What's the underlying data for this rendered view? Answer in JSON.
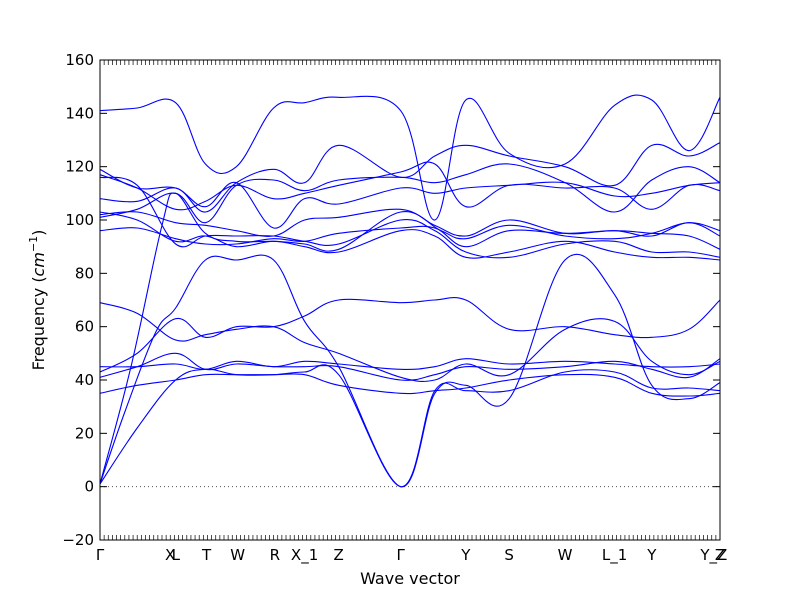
{
  "chart_data": {
    "type": "line",
    "title": "",
    "xlabel": "Wave vector",
    "ylabel": "Frequency (",
    "ylabel_unit": "cm",
    "ylabel_unit_exp": "−1",
    "ylabel_close": ")",
    "ylim": [
      -20,
      160
    ],
    "yticks": [
      -20,
      0,
      20,
      40,
      60,
      80,
      100,
      120,
      140,
      160
    ],
    "ytick_labels": [
      "−20",
      "0",
      "20",
      "40",
      "60",
      "80",
      "100",
      "120",
      "140",
      "160"
    ],
    "xlim": [
      0,
      1
    ],
    "xticks": [
      {
        "label": "Γ",
        "x": 0.0
      },
      {
        "label": "X",
        "x": 0.115
      },
      {
        "label": "L",
        "x": 0.122
      },
      {
        "label": "T",
        "x": 0.172
      },
      {
        "label": "W",
        "x": 0.222
      },
      {
        "label": "R",
        "x": 0.282
      },
      {
        "label": "X_1",
        "x": 0.33
      },
      {
        "label": "Z",
        "x": 0.385
      },
      {
        "label": "Γ",
        "x": 0.485
      },
      {
        "label": "Y",
        "x": 0.59
      },
      {
        "label": "S",
        "x": 0.66
      },
      {
        "label": "W",
        "x": 0.75
      },
      {
        "label": "L_1",
        "x": 0.83
      },
      {
        "label": "Y",
        "x": 0.89
      },
      {
        "label": "Y_Z",
        "x": 0.99
      },
      {
        "label": "Z",
        "x": 1.0
      }
    ],
    "zero_line": {
      "y": 0,
      "style": "dotted"
    },
    "line_color": "#0000ff",
    "series": [
      {
        "x": [
          0,
          0.05,
          0.1,
          0.122,
          0.17,
          0.22,
          0.28,
          0.33,
          0.385,
          0.485,
          0.55,
          0.59,
          0.66,
          0.75,
          0.83,
          0.89,
          0.95,
          1.0
        ],
        "y": [
          1,
          45,
          98,
          110,
          95,
          92,
          92,
          91,
          89,
          103,
          96,
          93,
          98,
          94,
          93,
          95,
          99,
          96
        ]
      },
      {
        "x": [
          0,
          0.04,
          0.09,
          0.122,
          0.17,
          0.22,
          0.28,
          0.33,
          0.385,
          0.485,
          0.54,
          0.59,
          0.66,
          0.75,
          0.83,
          0.89,
          0.95,
          1.0
        ],
        "y": [
          1,
          28,
          58,
          67,
          85,
          85,
          85,
          62,
          45,
          0,
          35,
          38,
          33,
          85,
          72,
          38,
          33,
          39
        ]
      },
      {
        "x": [
          0,
          0.06,
          0.122,
          0.17,
          0.22,
          0.28,
          0.33,
          0.385,
          0.485,
          0.54,
          0.59,
          0.66,
          0.75,
          0.83,
          0.89,
          0.95,
          1.0
        ],
        "y": [
          1,
          22,
          40,
          44,
          42,
          42,
          43,
          42,
          0,
          36,
          36,
          36,
          43,
          43,
          37,
          37,
          36
        ]
      },
      {
        "x": [
          0,
          0.06,
          0.122,
          0.17,
          0.22,
          0.28,
          0.33,
          0.385,
          0.485,
          0.54,
          0.59,
          0.66,
          0.75,
          0.83,
          0.89,
          0.95,
          1.0
        ],
        "y": [
          35,
          38,
          40,
          42,
          42,
          42,
          42,
          38,
          35,
          36,
          37,
          40,
          42,
          41,
          35,
          34,
          35
        ]
      },
      {
        "x": [
          0,
          0.06,
          0.122,
          0.17,
          0.22,
          0.28,
          0.33,
          0.385,
          0.485,
          0.54,
          0.59,
          0.66,
          0.75,
          0.83,
          0.89,
          0.95,
          1.0
        ],
        "y": [
          45,
          45,
          46,
          44,
          47,
          45,
          47,
          46,
          44,
          45,
          48,
          46,
          47,
          46,
          45,
          45,
          46
        ]
      },
      {
        "x": [
          0,
          0.06,
          0.122,
          0.17,
          0.22,
          0.28,
          0.33,
          0.385,
          0.485,
          0.54,
          0.59,
          0.66,
          0.75,
          0.83,
          0.89,
          0.95,
          1.0
        ],
        "y": [
          41,
          45,
          50,
          44,
          46,
          45,
          45,
          45,
          40,
          42,
          45,
          44,
          45,
          47,
          44,
          41,
          48
        ]
      },
      {
        "x": [
          0,
          0.06,
          0.122,
          0.17,
          0.22,
          0.28,
          0.33,
          0.385,
          0.485,
          0.54,
          0.59,
          0.66,
          0.75,
          0.83,
          0.89,
          0.95,
          1.0
        ],
        "y": [
          69,
          65,
          55,
          57,
          59,
          60,
          54,
          50,
          41,
          40,
          46,
          42,
          59,
          62,
          47,
          42,
          47
        ]
      },
      {
        "x": [
          0,
          0.06,
          0.122,
          0.17,
          0.22,
          0.28,
          0.33,
          0.385,
          0.485,
          0.54,
          0.59,
          0.66,
          0.75,
          0.83,
          0.89,
          0.95,
          1.0
        ],
        "y": [
          43,
          50,
          63,
          56,
          60,
          60,
          64,
          70,
          69,
          70,
          70,
          59,
          60,
          57,
          56,
          59,
          70
        ]
      },
      {
        "x": [
          0,
          0.06,
          0.122,
          0.17,
          0.22,
          0.28,
          0.33,
          0.385,
          0.485,
          0.54,
          0.59,
          0.66,
          0.75,
          0.83,
          0.89,
          0.95,
          1.0
        ],
        "y": [
          116,
          113,
          91,
          94,
          94,
          94,
          92,
          91,
          100,
          96,
          88,
          86,
          91,
          92,
          88,
          88,
          86
        ]
      },
      {
        "x": [
          0,
          0.06,
          0.122,
          0.17,
          0.22,
          0.28,
          0.33,
          0.385,
          0.485,
          0.54,
          0.59,
          0.66,
          0.75,
          0.83,
          0.89,
          0.95,
          1.0
        ],
        "y": [
          103,
          100,
          92,
          94,
          90,
          92,
          90,
          88,
          96,
          94,
          86,
          88,
          92,
          88,
          86,
          86,
          85
        ]
      },
      {
        "x": [
          0,
          0.06,
          0.122,
          0.17,
          0.22,
          0.28,
          0.33,
          0.385,
          0.485,
          0.54,
          0.59,
          0.66,
          0.75,
          0.83,
          0.89,
          0.95,
          1.0
        ],
        "y": [
          96,
          97,
          93,
          91,
          91,
          93,
          92,
          95,
          97,
          97,
          90,
          96,
          95,
          96,
          95,
          94,
          89
        ]
      },
      {
        "x": [
          0,
          0.06,
          0.122,
          0.17,
          0.22,
          0.28,
          0.33,
          0.385,
          0.485,
          0.54,
          0.59,
          0.66,
          0.75,
          0.83,
          0.89,
          0.95,
          1.0
        ],
        "y": [
          102,
          103,
          99,
          98,
          96,
          94,
          100,
          101,
          104,
          98,
          94,
          100,
          95,
          96,
          94,
          99,
          94
        ]
      },
      {
        "x": [
          0,
          0.06,
          0.122,
          0.17,
          0.22,
          0.28,
          0.33,
          0.385,
          0.485,
          0.54,
          0.59,
          0.66,
          0.75,
          0.83,
          0.89,
          0.95,
          1.0
        ],
        "y": [
          119,
          112,
          112,
          105,
          114,
          97,
          108,
          106,
          112,
          110,
          112,
          113,
          114,
          109,
          110,
          113,
          114
        ]
      },
      {
        "x": [
          0,
          0.06,
          0.122,
          0.17,
          0.22,
          0.28,
          0.33,
          0.385,
          0.485,
          0.54,
          0.59,
          0.66,
          0.75,
          0.83,
          0.89,
          0.95,
          1.0
        ],
        "y": [
          101,
          104,
          110,
          99,
          113,
          115,
          111,
          115,
          116,
          114,
          117,
          121,
          114,
          103,
          115,
          120,
          114
        ]
      },
      {
        "x": [
          0,
          0.06,
          0.122,
          0.17,
          0.22,
          0.28,
          0.33,
          0.385,
          0.485,
          0.54,
          0.59,
          0.66,
          0.75,
          0.83,
          0.89,
          0.95,
          1.0
        ],
        "y": [
          117,
          112,
          104,
          107,
          113,
          108,
          110,
          113,
          118,
          121,
          105,
          113,
          112,
          112,
          104,
          113,
          111
        ]
      },
      {
        "x": [
          0,
          0.06,
          0.122,
          0.17,
          0.22,
          0.28,
          0.33,
          0.385,
          0.485,
          0.54,
          0.59,
          0.66,
          0.75,
          0.83,
          0.89,
          0.95,
          1.0
        ],
        "y": [
          108,
          107,
          112,
          103,
          114,
          119,
          114,
          128,
          116,
          124,
          128,
          124,
          120,
          113,
          128,
          124,
          129
        ]
      },
      {
        "x": [
          0,
          0.06,
          0.122,
          0.17,
          0.22,
          0.28,
          0.33,
          0.385,
          0.485,
          0.54,
          0.59,
          0.66,
          0.75,
          0.83,
          0.89,
          0.95,
          1.0
        ],
        "y": [
          141,
          142,
          144,
          121,
          120,
          142,
          144,
          146,
          141,
          100,
          145,
          125,
          121,
          143,
          145,
          126,
          146
        ]
      }
    ]
  }
}
